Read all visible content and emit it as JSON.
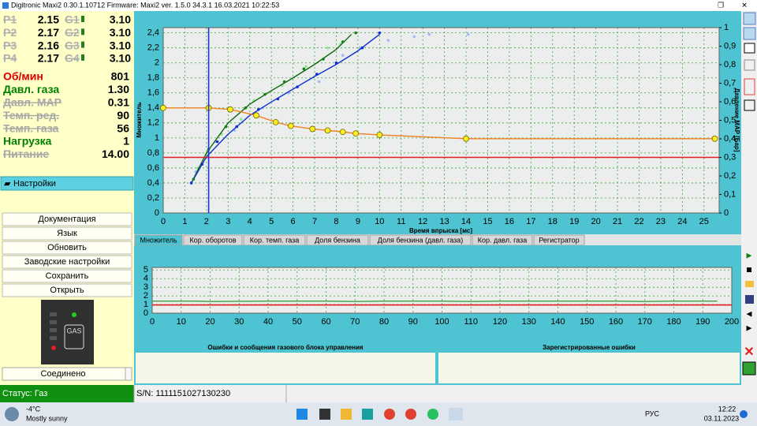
{
  "window": {
    "title": "Digitronic Maxi2 0.30.1.10712 Firmware: Maxi2  ver. 1.5.0  34.3.1   16.03.2021 10:22:53"
  },
  "injectors": [
    {
      "p": "P1",
      "p_value": "2.15",
      "g": "G1",
      "g_value": "3.10"
    },
    {
      "p": "P2",
      "p_value": "2.17",
      "g": "G2",
      "g_value": "3.10"
    },
    {
      "p": "P3",
      "p_value": "2.16",
      "g": "G3",
      "g_value": "3.10"
    },
    {
      "p": "P4",
      "p_value": "2.17",
      "g": "G4",
      "g_value": "3.10"
    }
  ],
  "params": [
    {
      "label": "Об/мин",
      "value": "801",
      "color": "#e00000",
      "struck": false
    },
    {
      "label": "Давл. газа",
      "value": "1.30",
      "color": "#008000",
      "struck": false
    },
    {
      "label": "Давл. MAP",
      "value": "0.31",
      "color": "#a8a8a8",
      "struck": true
    },
    {
      "label": "Темп. ред.",
      "value": "90",
      "color": "#a8a8a8",
      "struck": true
    },
    {
      "label": "Темп. газа",
      "value": "56",
      "color": "#a8a8a8",
      "struck": true
    },
    {
      "label": "Нагрузка",
      "value": "1",
      "color": "#008000",
      "struck": false
    },
    {
      "label": "Питание",
      "value": "14.00",
      "color": "#a8a8a8",
      "struck": true
    }
  ],
  "settings_button": "Настройки",
  "buttons": [
    "Документация",
    "Язык",
    "Обновить",
    "Заводские настройки",
    "Сохранить",
    "Открыть"
  ],
  "gas_indicator": "GAS",
  "connection": "Соединено",
  "main_chart": {
    "y_label": "Множитель",
    "x_label": "Время впрыска [мс]",
    "y2_label": "Давление MAP [Бар]",
    "xlim": [
      0,
      25.7
    ],
    "ylim": [
      0,
      2.47
    ],
    "y2lim": [
      0,
      1
    ],
    "grid": true,
    "xticks": [
      0,
      1,
      2,
      3,
      4,
      5,
      6,
      7,
      8,
      9,
      10,
      11,
      12,
      13,
      14,
      15,
      16,
      17,
      18,
      19,
      20,
      21,
      22,
      23,
      24,
      25
    ],
    "yticks": [
      0,
      {
        "value": 0.2,
        "label": "0,2"
      },
      {
        "value": 0.4,
        "label": "0,4"
      },
      {
        "value": 0.6,
        "label": "0,6"
      },
      {
        "value": 0.8,
        "label": "0,8"
      },
      1,
      {
        "value": 1.2,
        "label": "1,2"
      },
      {
        "value": 1.4,
        "label": "1,4"
      },
      {
        "value": 1.6,
        "label": "1,6"
      },
      {
        "value": 1.8,
        "label": "1,8"
      },
      2,
      {
        "value": 2.2,
        "label": "2,2"
      },
      {
        "value": 2.4,
        "label": "2,4"
      }
    ],
    "y2ticks": [
      0,
      {
        "value": 0.1,
        "label": "0,1"
      },
      {
        "value": 0.2,
        "label": "0,2"
      },
      {
        "value": 0.3,
        "label": "0,3"
      },
      {
        "value": 0.4,
        "label": "0,4"
      },
      {
        "value": 0.5,
        "label": "0,5"
      },
      {
        "value": 0.6,
        "label": "0,6"
      },
      {
        "value": 0.7,
        "label": "0,7"
      },
      {
        "value": 0.8,
        "label": "0,8"
      },
      {
        "value": 0.9,
        "label": "0,9"
      },
      1
    ],
    "series": [
      {
        "kind": "scatter",
        "color": "#a8b8f8",
        "x": [
          1.5,
          2.4,
          3.3,
          4.6,
          5.8,
          7.2,
          8.3,
          9.1,
          10.4,
          11.6,
          12.3,
          14.1
        ],
        "y": [
          0.55,
          0.95,
          1.1,
          1.4,
          1.6,
          1.75,
          2.1,
          2.2,
          2.3,
          2.35,
          2.38,
          2.38
        ]
      },
      {
        "kind": "scatter",
        "color": "#90e890",
        "x": [
          1.6,
          2.7,
          3.6,
          4.2,
          5.5,
          6.6,
          7.6,
          8.2
        ],
        "y": [
          0.6,
          1.05,
          1.25,
          1.5,
          1.7,
          1.95,
          2.2,
          2.25
        ]
      },
      {
        "kind": "line",
        "color": "#106810",
        "x": [
          1.3,
          2,
          3,
          4,
          5,
          6,
          7,
          8,
          8.7
        ],
        "y": [
          0.4,
          0.8,
          1.2,
          1.45,
          1.63,
          1.8,
          1.98,
          2.18,
          2.38
        ]
      },
      {
        "kind": "line",
        "color": "#1030d0",
        "x": [
          1.3,
          2,
          3,
          4,
          5,
          6,
          7,
          8,
          9,
          10
        ],
        "y": [
          0.4,
          0.75,
          1.05,
          1.3,
          1.48,
          1.65,
          1.82,
          1.98,
          2.16,
          2.38
        ]
      },
      {
        "kind": "scatter",
        "color": "#108010",
        "x": [
          1.4,
          2.1,
          2.9,
          3.8,
          4.7,
          5.6,
          6.5,
          7.4,
          8.3,
          8.9
        ],
        "y": [
          0.45,
          0.85,
          1.15,
          1.4,
          1.58,
          1.75,
          1.92,
          2.05,
          2.28,
          2.4
        ]
      },
      {
        "kind": "scatter",
        "color": "#1030d0",
        "x": [
          1.3,
          1.8,
          2.5,
          3.4,
          4.4,
          5.3,
          6.2,
          7.1,
          8,
          9.2,
          10
        ],
        "y": [
          0.4,
          0.65,
          0.95,
          1.15,
          1.38,
          1.52,
          1.68,
          1.85,
          2.0,
          2.2,
          2.4
        ]
      },
      {
        "kind": "line",
        "color": "#f08020",
        "marker_color": "#f8f020",
        "x": [
          0,
          2.1,
          3.1,
          4.3,
          5.2,
          5.9,
          6.9,
          7.6,
          8.3,
          8.9,
          10,
          14,
          25.5
        ],
        "y": [
          1.4,
          1.4,
          1.38,
          1.3,
          1.21,
          1.16,
          1.12,
          1.1,
          1.08,
          1.06,
          1.04,
          0.99,
          0.99
        ]
      },
      {
        "kind": "hline",
        "axis": "y2",
        "color": "#e02020",
        "value": 0.3
      },
      {
        "kind": "vline",
        "color": "#2030e0",
        "value": 2.1
      }
    ]
  },
  "tabs": [
    "Множитель",
    "Кор. оборотов",
    "Кор. темп. газа",
    "Доля бензина",
    "Доля бензина (давл. газа)",
    "Кор. давл. газа",
    "Регистратор"
  ],
  "active_tab": 0,
  "log_chart": {
    "xlim": [
      0,
      200
    ],
    "ylim": [
      0,
      5.3
    ],
    "grid": true,
    "xticks": [
      0,
      10,
      20,
      30,
      40,
      50,
      60,
      70,
      80,
      90,
      100,
      110,
      120,
      130,
      140,
      150,
      160,
      170,
      180,
      190,
      200
    ],
    "yticks": [
      0,
      1,
      2,
      3,
      4,
      5
    ],
    "series": [
      {
        "kind": "line",
        "color": "#40a040",
        "x": [
          0,
          15,
          20,
          40,
          60,
          70,
          80,
          100,
          110,
          120,
          140,
          160,
          170,
          180,
          195
        ],
        "y": [
          1.4,
          1.4,
          1.35,
          1.4,
          1.4,
          1.35,
          1.4,
          1.4,
          1.35,
          1.4,
          1.4,
          1.4,
          1.35,
          1.4,
          1.4
        ]
      },
      {
        "kind": "hline",
        "color": "#e02020",
        "value": 0.95
      }
    ]
  },
  "panels": [
    "Ошибки и сообщения газового блока управления",
    "Зарегистрированные ошибки"
  ],
  "status": {
    "state": "Статус: Газ",
    "serial": "S/N: 1111151027130230"
  },
  "taskbar": {
    "temperature": "-4°C",
    "weather": "Mostly sunny",
    "language": "РУС",
    "time": "12:22",
    "date": "03.11.2023"
  }
}
